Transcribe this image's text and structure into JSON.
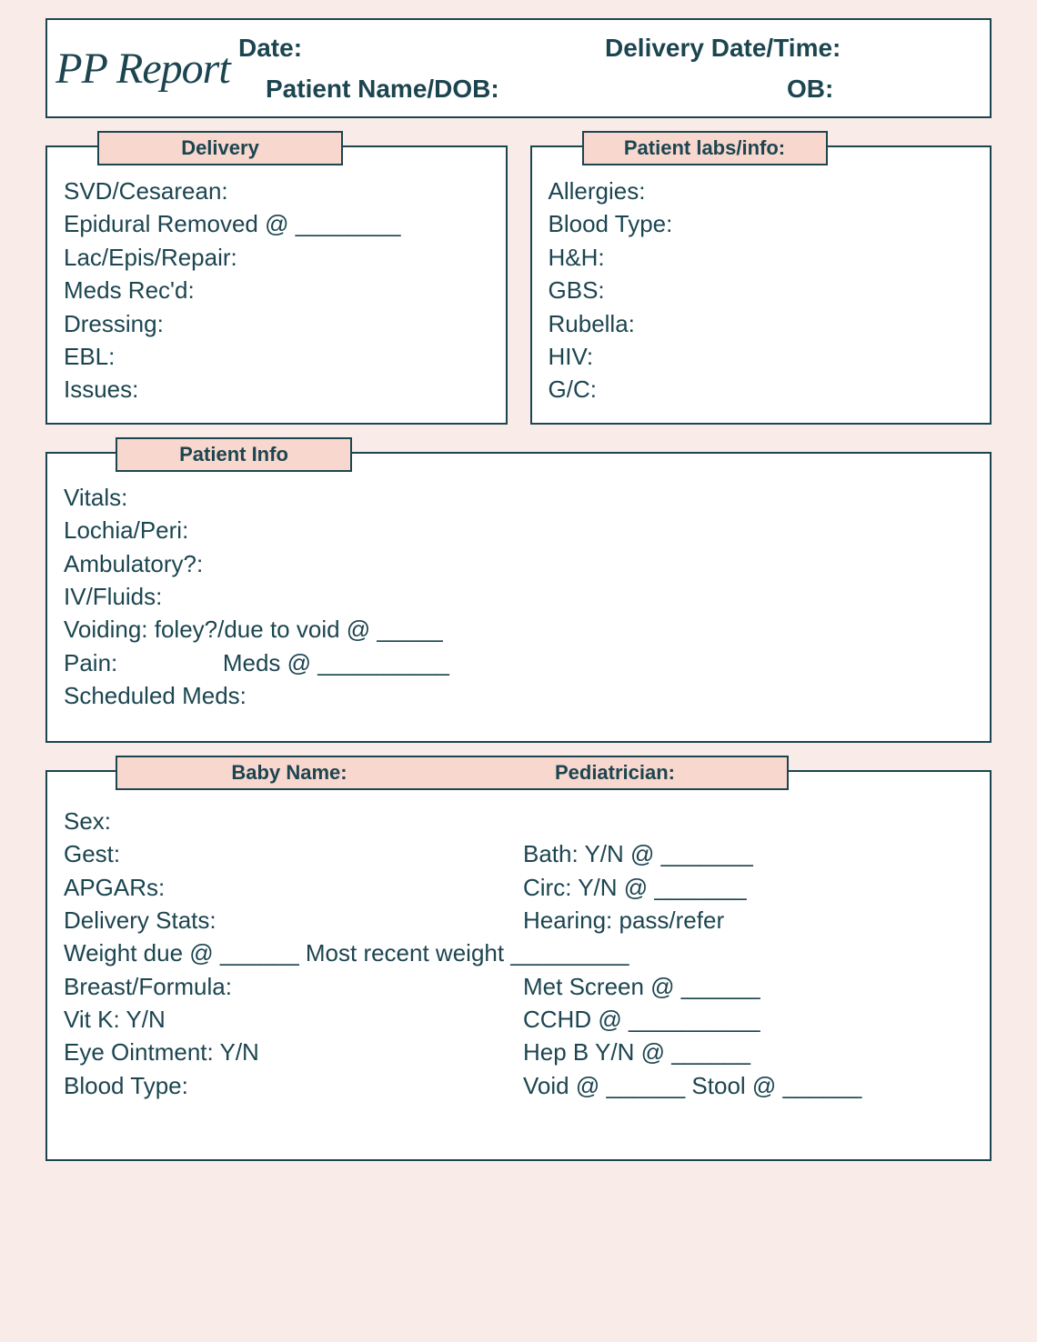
{
  "colors": {
    "background": "#f9ece8",
    "panel_bg": "#ffffff",
    "border": "#1c4550",
    "tab_bg": "#f8d7ce",
    "text": "#1c4550"
  },
  "typography": {
    "logo_font": "Brush Script MT, cursive",
    "body_font": "Segoe UI, Arial, sans-serif",
    "header_label_size_pt": 21,
    "header_label_weight": 700,
    "tab_label_size_pt": 17,
    "tab_label_weight": 700,
    "field_size_pt": 20
  },
  "logo_text": "PP Report",
  "header": {
    "date_label": "Date:",
    "delivery_datetime_label": "Delivery Date/Time:",
    "patient_label": "Patient Name/DOB:",
    "ob_label": "OB:"
  },
  "delivery": {
    "tab": "Delivery",
    "lines": [
      "SVD/Cesarean:",
      "Epidural Removed @ ________",
      "Lac/Epis/Repair:",
      "Meds Rec'd:",
      "Dressing:",
      "EBL:",
      "Issues:"
    ]
  },
  "labs": {
    "tab": "Patient labs/info:",
    "lines": [
      "Allergies:",
      "Blood Type:",
      "H&H:",
      "GBS:",
      "Rubella:",
      "HIV:",
      "G/C:"
    ]
  },
  "patient_info": {
    "tab": "Patient Info",
    "lines": [
      "Vitals:",
      "Lochia/Peri:",
      "Ambulatory?:",
      "IV/Fluids:",
      "Voiding: foley?/due to void @ _____",
      "Pain:                Meds @ __________",
      "Scheduled Meds:"
    ]
  },
  "baby": {
    "tab_left": "Baby Name:",
    "tab_right": "Pediatrician:",
    "rows": [
      {
        "left": "Sex:",
        "right": ""
      },
      {
        "left": "Gest:",
        "right": "Bath: Y/N @ _______"
      },
      {
        "left": "APGARs:",
        "right": "Circ: Y/N @ _______"
      },
      {
        "left": "Delivery Stats:",
        "right": "Hearing: pass/refer"
      },
      {
        "full": "Weight due @ ______  Most recent weight _________"
      },
      {
        "left": "Breast/Formula:",
        "right": "Met Screen @ ______"
      },
      {
        "left": "Vit K:   Y/N",
        "right": "CCHD  @ __________"
      },
      {
        "left": "Eye Ointment:  Y/N",
        "right": "Hep B Y/N @ ______"
      },
      {
        "left": "Blood Type:",
        "right": "Void @ ______  Stool @ ______"
      }
    ]
  }
}
